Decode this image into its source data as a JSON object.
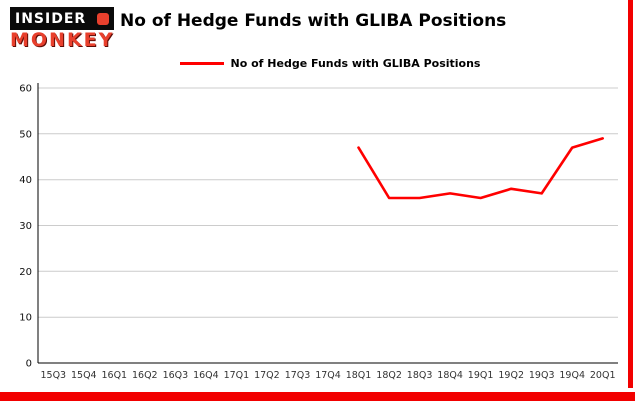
{
  "brand": {
    "logo_line1": "INSIDER",
    "logo_line2": "MONKEY",
    "brand_black": "#0a0a0a",
    "brand_red": "#e8402d"
  },
  "header": {
    "title": "No of Hedge Funds with GLIBA Positions"
  },
  "legend": {
    "label": "No of Hedge Funds with GLIBA Positions",
    "line_color": "#ff0000"
  },
  "frame": {
    "border_color": "#f20000"
  },
  "chart_data": {
    "type": "line",
    "title": "No of Hedge Funds with GLIBA Positions",
    "categories": [
      "15Q3",
      "15Q4",
      "16Q1",
      "16Q2",
      "16Q3",
      "16Q4",
      "17Q1",
      "17Q2",
      "17Q3",
      "17Q4",
      "18Q1",
      "18Q2",
      "18Q3",
      "18Q4",
      "19Q1",
      "19Q2",
      "19Q3",
      "19Q4",
      "20Q1"
    ],
    "series": [
      {
        "name": "No of Hedge Funds with GLIBA Positions",
        "color": "#ff0000",
        "values": [
          null,
          null,
          null,
          null,
          null,
          null,
          null,
          null,
          null,
          null,
          47,
          36,
          36,
          37,
          36,
          38,
          37,
          47,
          49
        ]
      }
    ],
    "ylim": [
      0,
      60
    ],
    "yticks": [
      0,
      10,
      20,
      30,
      40,
      50,
      60
    ],
    "grid": true,
    "grid_color": "#cccccc",
    "axis_color": "#000000",
    "legend_position": "top"
  }
}
